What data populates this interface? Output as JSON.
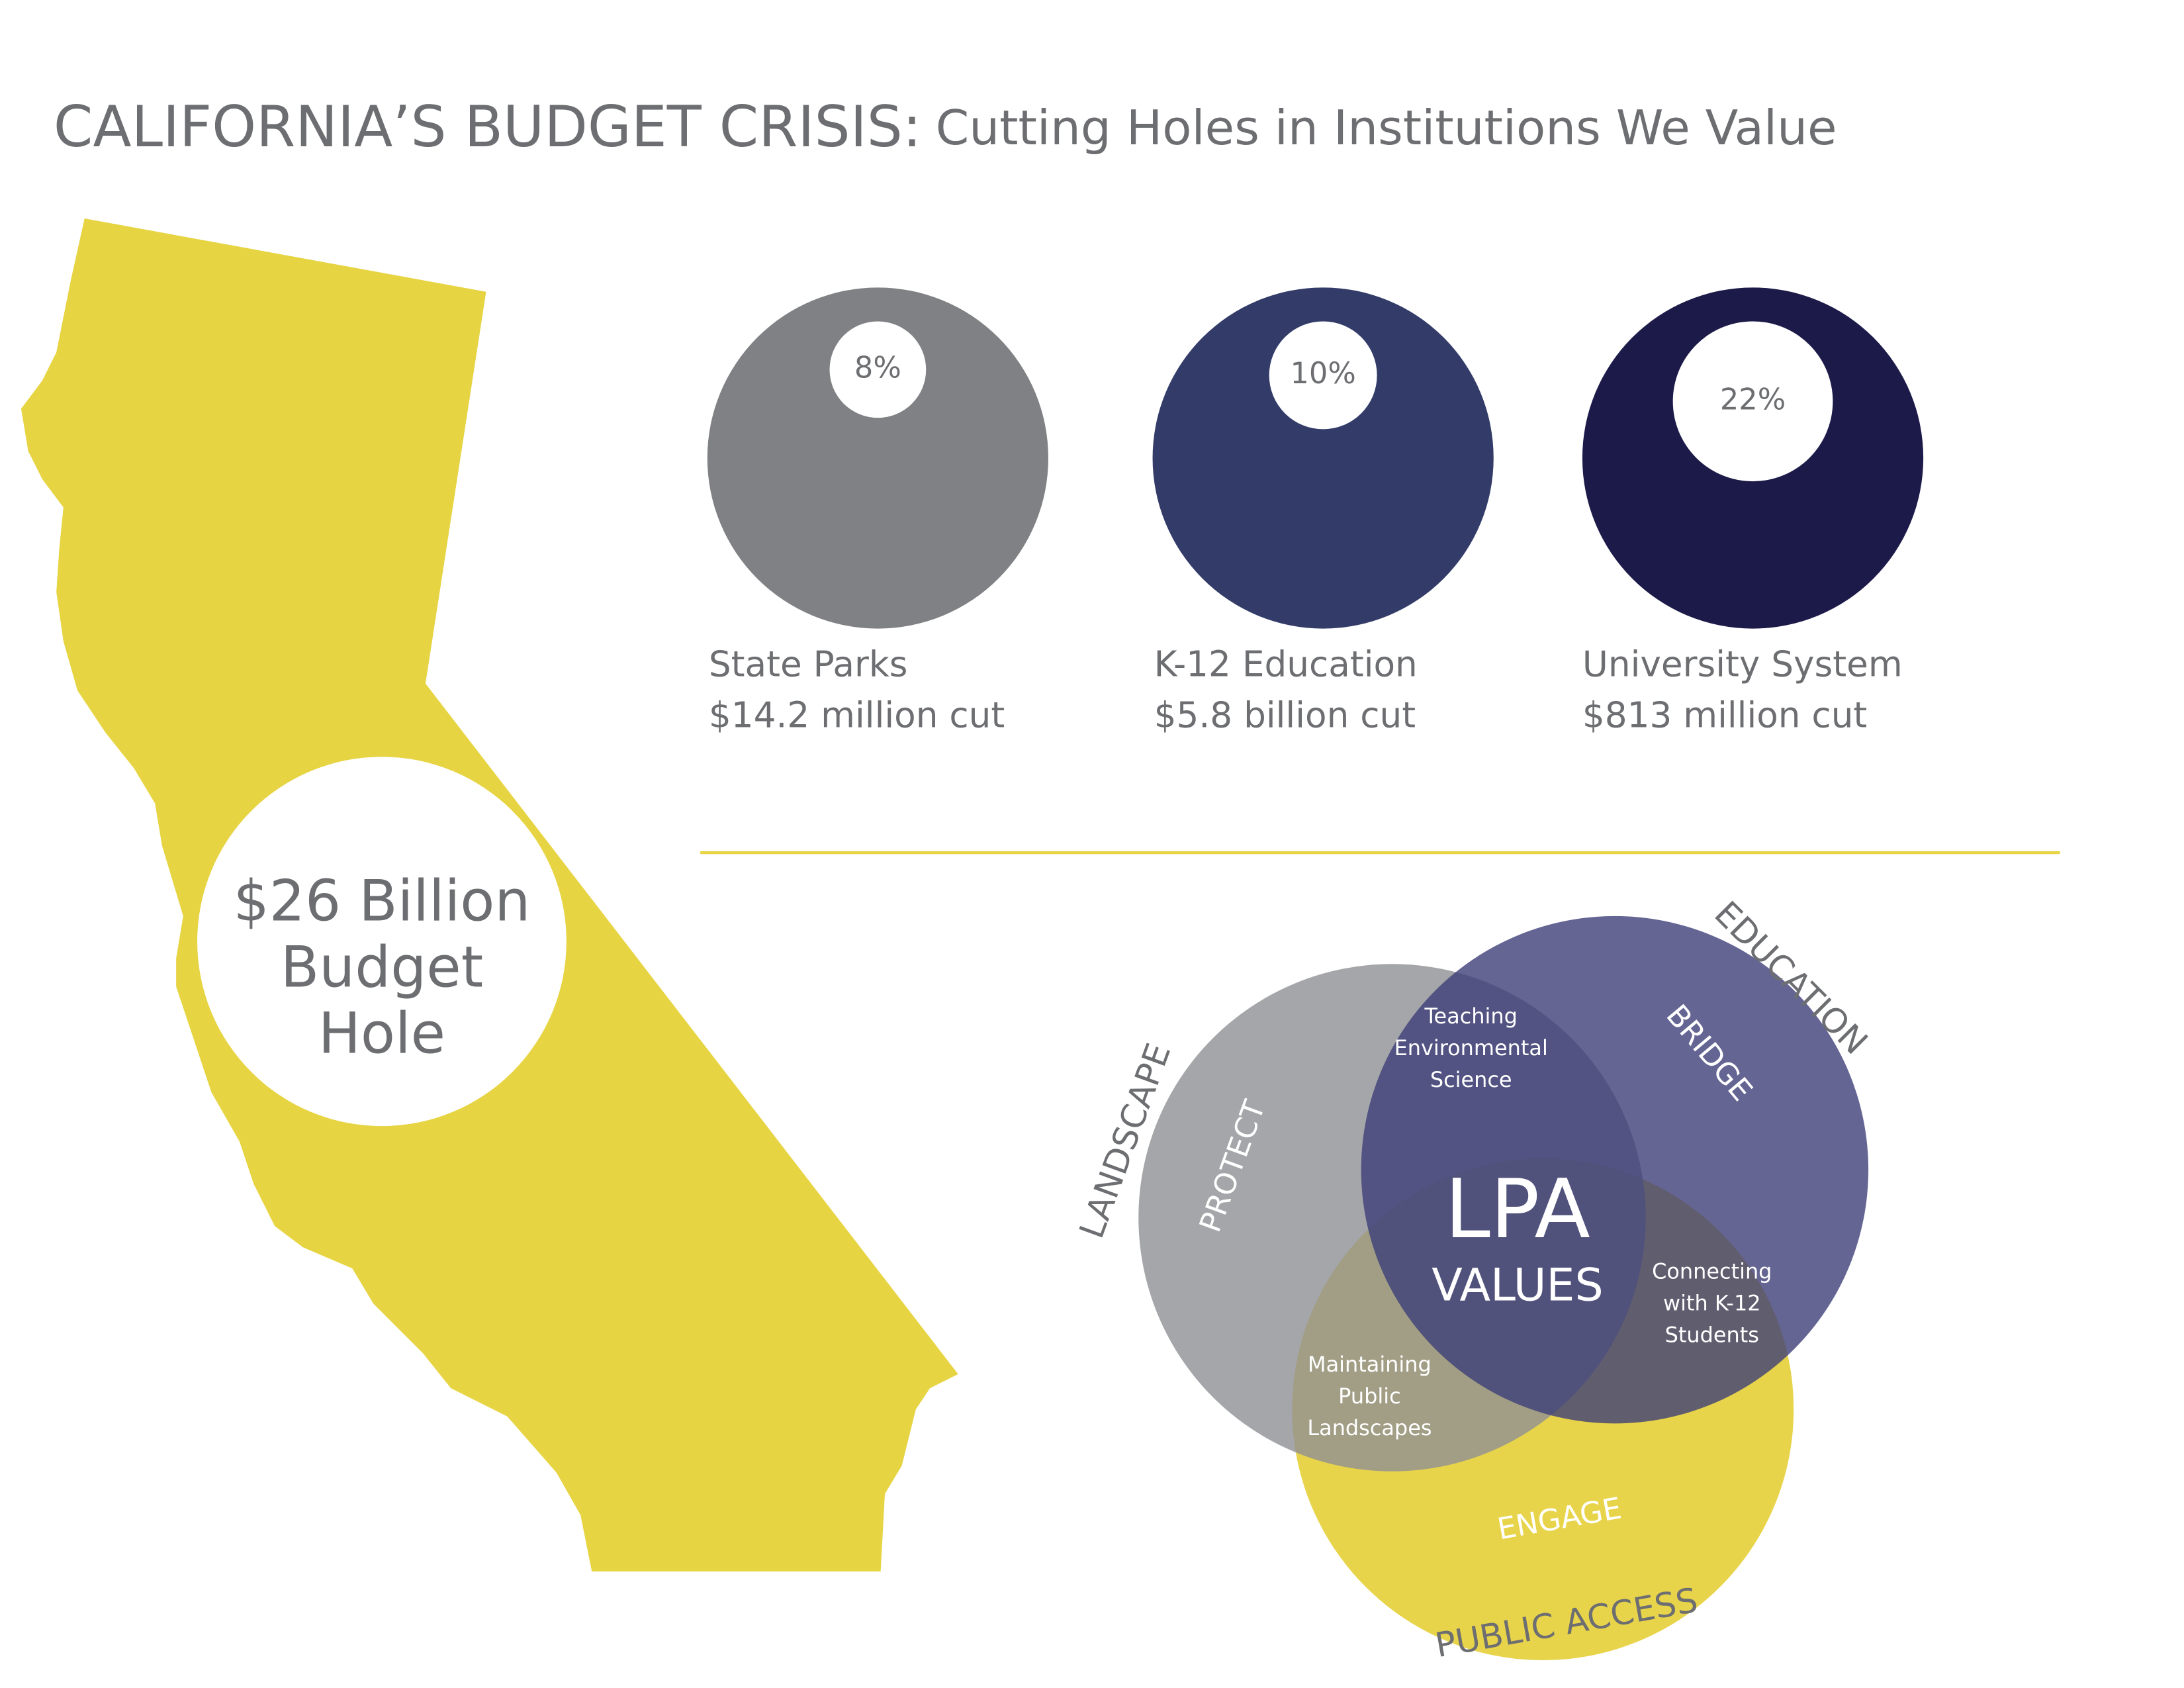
{
  "header": {
    "title": "CALIFORNIA’S BUDGET CRISIS:",
    "subtitle": "Cutting Holes in Institutions We Value"
  },
  "map": {
    "label_lines": [
      "$26 Billion",
      "Budget",
      "Hole"
    ]
  },
  "cuts": {
    "items": [
      {
        "percent": {
          "value": 8,
          "label": "8%"
        },
        "name": "State Parks",
        "amount": "$14.2 million cut",
        "color": "#808184"
      },
      {
        "percent": {
          "value": 10,
          "label": "10%"
        },
        "name": "K-12 Education",
        "amount": "$5.8 billion cut",
        "color": "#333c69"
      },
      {
        "percent": {
          "value": 22,
          "label": "22%"
        },
        "name": "University System",
        "amount": "$813 million cut",
        "color": "#1c1a48"
      }
    ]
  },
  "venn": {
    "circles": [
      {
        "label": "LANDSCAPE",
        "inner_label": "PROTECT"
      },
      {
        "label": "EDUCATION",
        "inner_label": "BRIDGE"
      },
      {
        "label": "PUBLIC ACCESS",
        "inner_label": "ENGAGE"
      }
    ],
    "overlaps": [
      {
        "lines": [
          "Teaching",
          "Environmental",
          "Science"
        ]
      },
      {
        "lines": [
          "Connecting",
          "with K-12",
          "Students"
        ]
      },
      {
        "lines": [
          "Maintaining",
          "Public",
          "Landscapes"
        ]
      }
    ],
    "center": {
      "title": "LPA",
      "subtitle": "VALUES"
    }
  }
}
